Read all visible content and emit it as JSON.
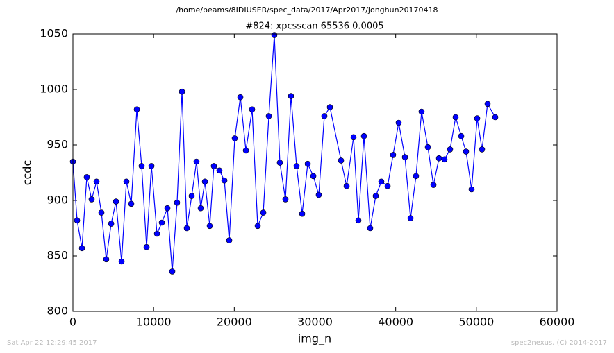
{
  "chart_data": {
    "type": "line",
    "suptitle": "/home/beams/8IDIUSER/spec_data/2017/Apr2017/jonghun20170418",
    "title": "#824: xpcsscan 65536 0.0005",
    "x_label": "img_n",
    "y_label": "ccdc",
    "footer_left": "Sat Apr 22 12:29:45 2017",
    "footer_right": "spec2nexus, (C) 2014-2017",
    "xlim": [
      0,
      60000
    ],
    "ylim": [
      800,
      1050
    ],
    "xticks": [
      0,
      10000,
      20000,
      30000,
      40000,
      50000,
      60000
    ],
    "yticks": [
      800,
      850,
      900,
      950,
      1000,
      1050
    ],
    "grid": false,
    "series": [
      {
        "color": "#0000ff",
        "x": [
          0,
          520,
          1120,
          1720,
          2320,
          2930,
          3530,
          4130,
          4740,
          5340,
          6030,
          6630,
          7230,
          7920,
          8520,
          9130,
          9730,
          10420,
          11020,
          11710,
          12310,
          12910,
          13520,
          14120,
          14720,
          15320,
          15840,
          16360,
          16960,
          17470,
          18160,
          18770,
          19370,
          20060,
          20750,
          21440,
          22210,
          22900,
          23590,
          24280,
          24960,
          25650,
          26340,
          27030,
          27720,
          28410,
          29100,
          29790,
          30470,
          31160,
          31850,
          33230,
          33920,
          34780,
          35380,
          36070,
          36840,
          37530,
          38220,
          39000,
          39680,
          40370,
          41150,
          41840,
          42520,
          43210,
          43990,
          44680,
          45370,
          46050,
          46740,
          47430,
          48120,
          48720,
          49410,
          50100,
          50700,
          51390,
          52340
        ],
        "values": [
          935,
          882,
          857,
          921,
          901,
          917,
          889,
          847,
          879,
          899,
          845,
          917,
          897,
          982,
          931,
          858,
          931,
          870,
          880,
          893,
          836,
          898,
          998,
          875,
          904,
          935,
          893,
          917,
          877,
          931,
          927,
          918,
          864,
          956,
          993,
          945,
          982,
          877,
          889,
          976,
          1049,
          934,
          901,
          994,
          931,
          888,
          933,
          922,
          905,
          976,
          984,
          936,
          913,
          957,
          882,
          958,
          875,
          904,
          917,
          913,
          941,
          970,
          939,
          884,
          922,
          980,
          948,
          914,
          938,
          937,
          946,
          975,
          958,
          944,
          910,
          974,
          946,
          987,
          975
        ]
      }
    ]
  }
}
